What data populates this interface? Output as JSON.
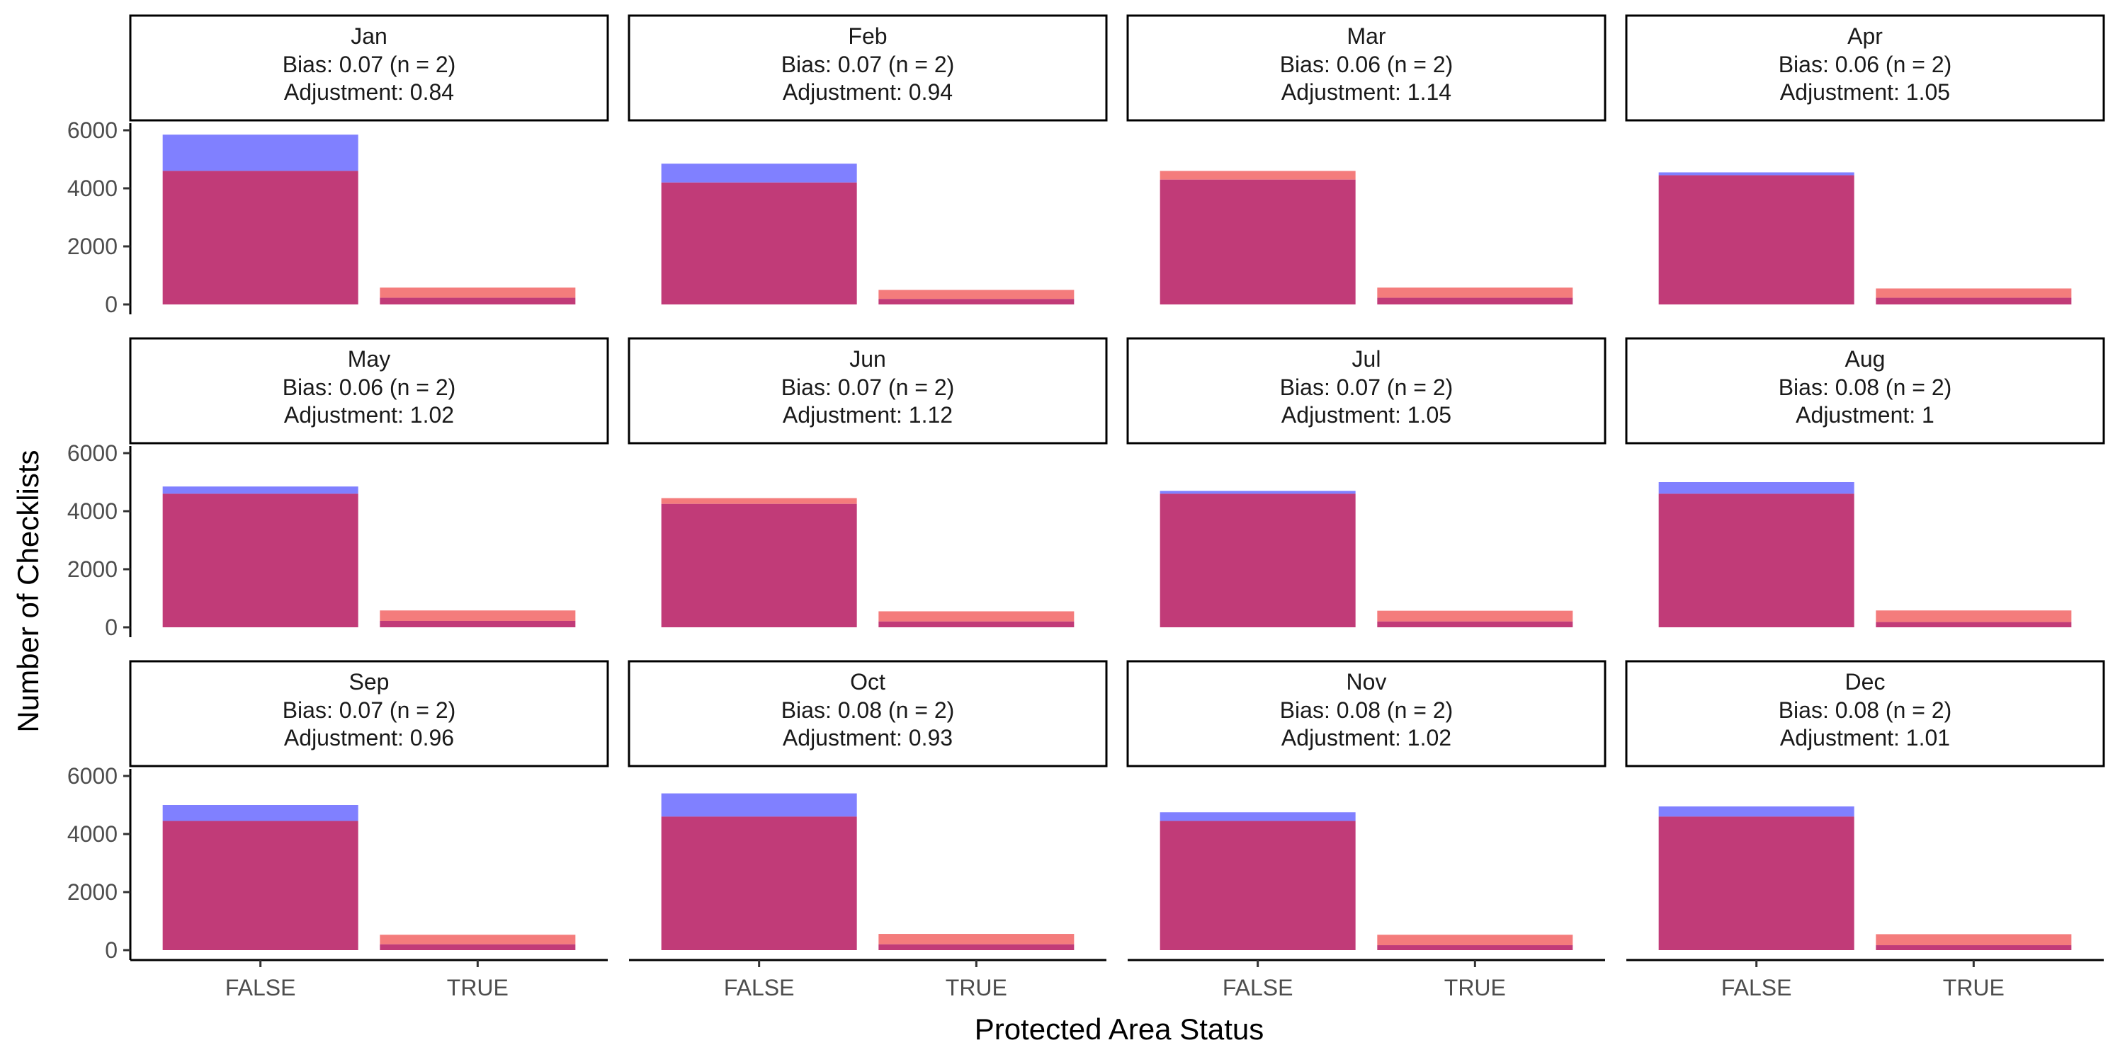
{
  "chart_data": {
    "type": "bar",
    "layout": "facet-grid",
    "xlabel": "Protected Area Status",
    "ylabel": "Number of Checklists",
    "categories": [
      "FALSE",
      "TRUE"
    ],
    "yticks": [
      0,
      2000,
      4000,
      6000
    ],
    "ylim": [
      0,
      6000
    ],
    "colors": {
      "blue_series": "#8080ff",
      "red_series": "#f47c7c",
      "overlap": "#c13b78"
    },
    "panels": [
      {
        "strip_title": "Jan",
        "strip_bias": "Bias: 0.07 (n = 2)",
        "strip_adjustment": "Adjustment: 0.84",
        "blue": [
          5850,
          230
        ],
        "red": [
          4600,
          580
        ]
      },
      {
        "strip_title": "Feb",
        "strip_bias": "Bias: 0.07 (n = 2)",
        "strip_adjustment": "Adjustment: 0.94",
        "blue": [
          4850,
          190
        ],
        "red": [
          4200,
          500
        ]
      },
      {
        "strip_title": "Mar",
        "strip_bias": "Bias: 0.06 (n = 2)",
        "strip_adjustment": "Adjustment: 1.14",
        "blue": [
          4300,
          230
        ],
        "red": [
          4600,
          580
        ]
      },
      {
        "strip_title": "Apr",
        "strip_bias": "Bias: 0.06 (n = 2)",
        "strip_adjustment": "Adjustment: 1.05",
        "blue": [
          4550,
          230
        ],
        "red": [
          4450,
          550
        ]
      },
      {
        "strip_title": "May",
        "strip_bias": "Bias: 0.06 (n = 2)",
        "strip_adjustment": "Adjustment: 1.02",
        "blue": [
          4850,
          220
        ],
        "red": [
          4600,
          580
        ]
      },
      {
        "strip_title": "Jun",
        "strip_bias": "Bias: 0.07 (n = 2)",
        "strip_adjustment": "Adjustment: 1.12",
        "blue": [
          4250,
          200
        ],
        "red": [
          4450,
          550
        ]
      },
      {
        "strip_title": "Jul",
        "strip_bias": "Bias: 0.07 (n = 2)",
        "strip_adjustment": "Adjustment: 1.05",
        "blue": [
          4700,
          200
        ],
        "red": [
          4600,
          570
        ]
      },
      {
        "strip_title": "Aug",
        "strip_bias": "Bias: 0.08 (n = 2)",
        "strip_adjustment": "Adjustment: 1",
        "blue": [
          5000,
          180
        ],
        "red": [
          4600,
          580
        ]
      },
      {
        "strip_title": "Sep",
        "strip_bias": "Bias: 0.07 (n = 2)",
        "strip_adjustment": "Adjustment: 0.96",
        "blue": [
          5000,
          200
        ],
        "red": [
          4450,
          530
        ]
      },
      {
        "strip_title": "Oct",
        "strip_bias": "Bias: 0.08 (n = 2)",
        "strip_adjustment": "Adjustment: 0.93",
        "blue": [
          5400,
          200
        ],
        "red": [
          4600,
          560
        ]
      },
      {
        "strip_title": "Nov",
        "strip_bias": "Bias: 0.08 (n = 2)",
        "strip_adjustment": "Adjustment: 1.02",
        "blue": [
          4750,
          170
        ],
        "red": [
          4450,
          530
        ]
      },
      {
        "strip_title": "Dec",
        "strip_bias": "Bias: 0.08 (n = 2)",
        "strip_adjustment": "Adjustment: 1.01",
        "blue": [
          4950,
          170
        ],
        "red": [
          4600,
          550
        ]
      }
    ]
  }
}
